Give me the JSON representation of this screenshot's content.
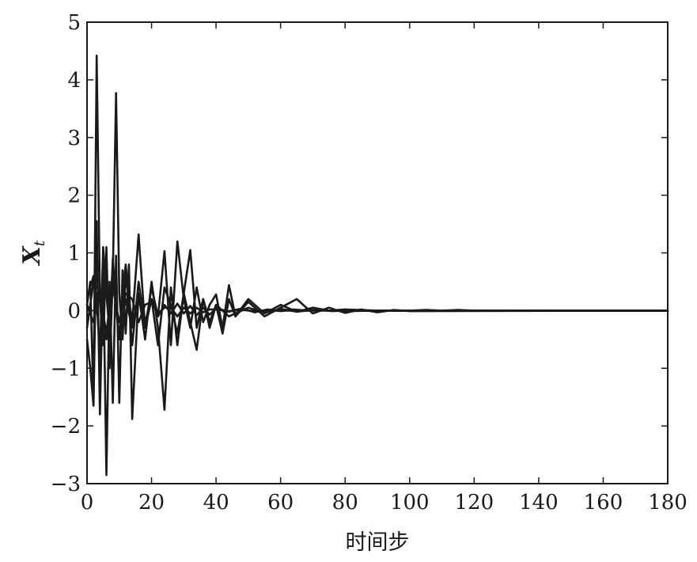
{
  "chart_data": {
    "type": "line",
    "title": "",
    "xlabel": "时间步",
    "ylabel": "X",
    "ylabel_subscript": "t",
    "xlim": [
      0,
      180
    ],
    "ylim": [
      -3,
      5
    ],
    "xticks": [
      0,
      20,
      40,
      60,
      80,
      100,
      120,
      140,
      160,
      180
    ],
    "yticks": [
      -3,
      -2,
      -1,
      0,
      1,
      2,
      3,
      4,
      5
    ],
    "xtick_labels": [
      "0",
      "20",
      "40",
      "60",
      "80",
      "100",
      "120",
      "140",
      "160",
      "180"
    ],
    "ytick_labels": [
      "−3",
      "−2",
      "−1",
      "0",
      "1",
      "2",
      "3",
      "4",
      "5"
    ],
    "grid": false,
    "line_color": "#1a1a1a",
    "series": [
      {
        "x": [
          0,
          1,
          2,
          3,
          4,
          5,
          6,
          7,
          8,
          9,
          10,
          11,
          12,
          14,
          16,
          18,
          20,
          22,
          24,
          26,
          28,
          30,
          32,
          34,
          36,
          38,
          40,
          42,
          44,
          46,
          50,
          55,
          60,
          65,
          70,
          75,
          80,
          90,
          100,
          180
        ],
        "values": [
          0.1,
          0.5,
          -1.6,
          4.42,
          0.2,
          -0.6,
          1.1,
          -1.0,
          0.6,
          3.77,
          0.3,
          -0.5,
          0.6,
          -0.2,
          1.32,
          -0.3,
          0.4,
          -0.1,
          1.03,
          -0.6,
          1.2,
          0.2,
          -0.3,
          0.4,
          -0.2,
          0.1,
          0.28,
          -0.3,
          0.44,
          -0.1,
          0.2,
          -0.05,
          0.1,
          -0.02,
          0.05,
          0.0,
          0.02,
          0.0,
          0.0,
          0.0
        ]
      },
      {
        "x": [
          0,
          1,
          2,
          3,
          4,
          5,
          6,
          7,
          8,
          9,
          10,
          11,
          12,
          13,
          14,
          16,
          18,
          20,
          22,
          24,
          26,
          28,
          30,
          32,
          34,
          36,
          38,
          40,
          42,
          44,
          46,
          50,
          55,
          60,
          65,
          70,
          75,
          80,
          85,
          90,
          95,
          100,
          180
        ],
        "values": [
          -0.5,
          -1.0,
          -1.65,
          1.55,
          -1.8,
          0.8,
          -2.85,
          0.5,
          -1.6,
          0.95,
          -1.6,
          0.7,
          -0.4,
          0.8,
          -1.88,
          0.3,
          -0.5,
          0.5,
          -0.3,
          -1.72,
          0.4,
          -0.6,
          0.3,
          -0.2,
          -0.68,
          0.2,
          -0.3,
          0.1,
          -0.4,
          0.2,
          -0.1,
          0.15,
          -0.1,
          0.05,
          0.2,
          -0.05,
          0.05,
          -0.04,
          0.02,
          -0.03,
          0.01,
          -0.01,
          0.0
        ]
      },
      {
        "x": [
          0,
          1,
          2,
          3,
          4,
          5,
          6,
          7,
          8,
          9,
          10,
          11,
          12,
          14,
          16,
          18,
          20,
          22,
          24,
          26,
          28,
          30,
          32,
          34,
          36,
          38,
          40,
          44,
          50,
          55,
          60,
          65,
          70,
          80,
          90,
          100,
          180
        ],
        "values": [
          0.2,
          0.4,
          0.6,
          0.2,
          -0.8,
          1.1,
          0.3,
          -0.4,
          0.9,
          0.1,
          -0.5,
          0.3,
          0.8,
          -0.6,
          0.5,
          -0.3,
          0.2,
          -0.6,
          0.4,
          0.1,
          -0.4,
          0.3,
          1.05,
          -0.3,
          0.2,
          -0.2,
          0.1,
          -0.1,
          0.05,
          -0.04,
          0.03,
          -0.02,
          0.01,
          -0.01,
          0.0,
          0.0,
          0.0
        ]
      },
      {
        "x": [
          0,
          2,
          4,
          6,
          8,
          10,
          12,
          14,
          16,
          18,
          20,
          22,
          24,
          26,
          28,
          30,
          32,
          34,
          36,
          38,
          40,
          44,
          48,
          52,
          56,
          60,
          64,
          68,
          72,
          76,
          80,
          85,
          90,
          95,
          100,
          105,
          110,
          115,
          120,
          180
        ],
        "values": [
          -0.3,
          0.5,
          0.3,
          -0.4,
          0.6,
          -0.5,
          0.2,
          -0.3,
          0.3,
          -0.2,
          0.2,
          -0.1,
          0.1,
          -0.05,
          0.12,
          -0.05,
          0.08,
          -0.08,
          0.05,
          -0.07,
          0.04,
          -0.02,
          0.04,
          -0.03,
          0.02,
          -0.01,
          0.02,
          0.0,
          0.01,
          -0.01,
          0.0,
          0.0,
          0.0,
          0.0,
          0.0,
          0.01,
          0.0,
          0.01,
          0.0,
          0.0
        ]
      },
      {
        "x": [
          0,
          2,
          4,
          6,
          8,
          10,
          12,
          14,
          16,
          18,
          20,
          22,
          24,
          26,
          28,
          30,
          32,
          34,
          36,
          38,
          40,
          44,
          48,
          52,
          56,
          60,
          64,
          68,
          72,
          76,
          80,
          90,
          100,
          180
        ],
        "values": [
          0.1,
          -0.2,
          0.3,
          -0.5,
          0.4,
          -0.2,
          0.3,
          0.2,
          -0.2,
          0.1,
          0.15,
          -0.05,
          0.05,
          0.05,
          -0.1,
          0.05,
          -0.05,
          0.05,
          -0.03,
          0.02,
          0.02,
          -0.01,
          0.01,
          -0.01,
          0.0,
          0.0,
          0.0,
          0.0,
          0.0,
          0.0,
          0.0,
          0.0,
          0.0,
          0.0
        ]
      }
    ]
  }
}
